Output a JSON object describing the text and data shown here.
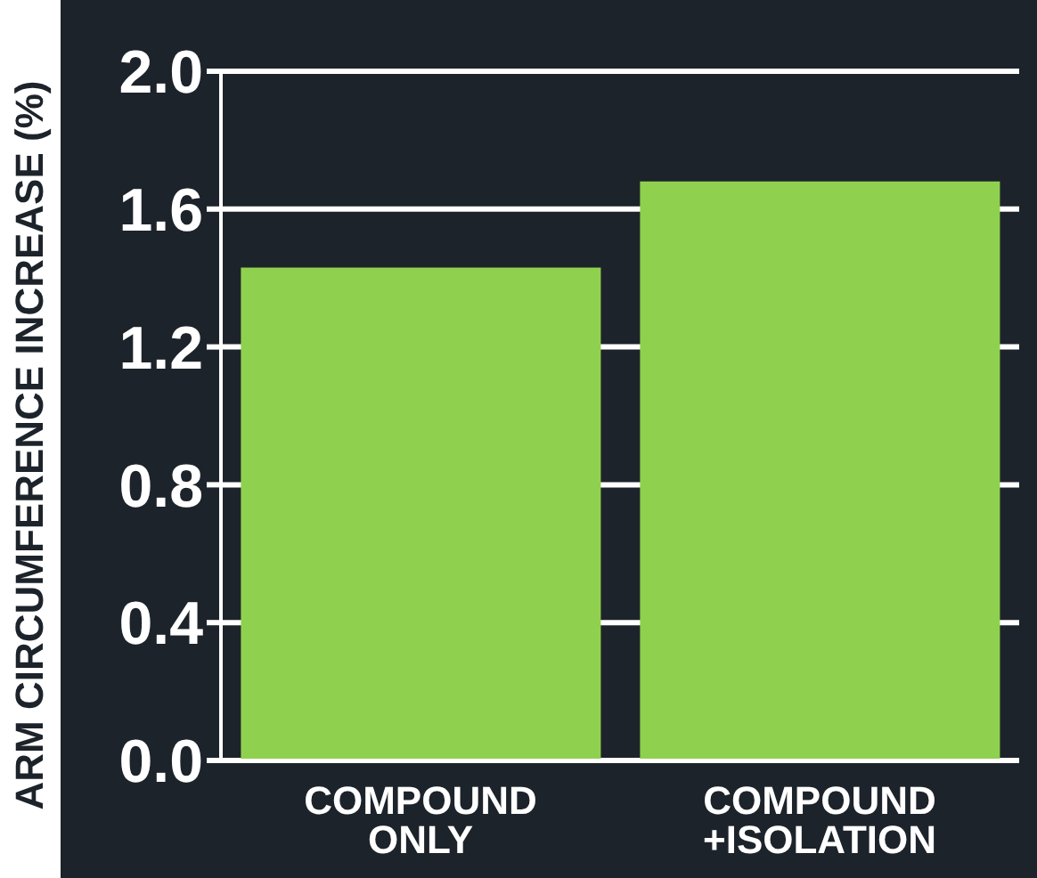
{
  "chart_data": {
    "type": "bar",
    "ylabel": "ARM CIRCUMFERENCE INCREASE (%)",
    "categories": [
      "COMPOUND\nONLY",
      "COMPOUND\n+ISOLATION"
    ],
    "values": [
      1.43,
      1.68
    ],
    "color": "#8fd14f",
    "ylim": [
      0,
      2
    ],
    "yticks": [
      {
        "value": 0,
        "label": "0.0"
      },
      {
        "value": 0.4,
        "label": "0.4"
      },
      {
        "value": 0.8,
        "label": "0.8"
      },
      {
        "value": 1.2,
        "label": "1.2"
      },
      {
        "value": 1.6,
        "label": "1.6"
      },
      {
        "value": 2,
        "label": "2.0"
      }
    ],
    "grid": "y"
  }
}
